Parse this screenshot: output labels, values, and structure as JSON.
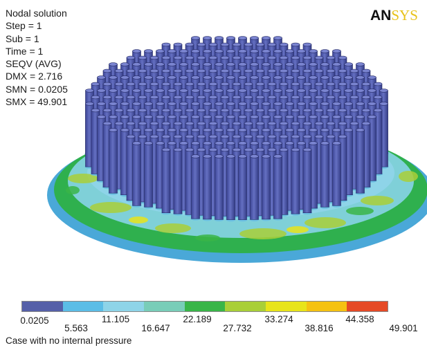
{
  "info_lines": [
    "Nodal solution",
    "Step = 1",
    "Sub = 1",
    "Time = 1",
    "SEQV  (AVG)",
    "DMX = 2.716",
    "SMN = 0.0205",
    "SMX = 49.901"
  ],
  "logo": {
    "part1": "AN",
    "part2": "SYS"
  },
  "legend": {
    "colors": [
      "#5560a8",
      "#5bbde6",
      "#8ed4e8",
      "#79cdb8",
      "#39b548",
      "#a9cf38",
      "#e8e41a",
      "#f5c212",
      "#e54a26"
    ],
    "ticks": [
      "0.0205",
      "5.563",
      "11.105",
      "16.647",
      "22.189",
      "27.732",
      "33.274",
      "38.816",
      "44.358",
      "49.901"
    ]
  },
  "caption": "Case with no internal pressure"
}
